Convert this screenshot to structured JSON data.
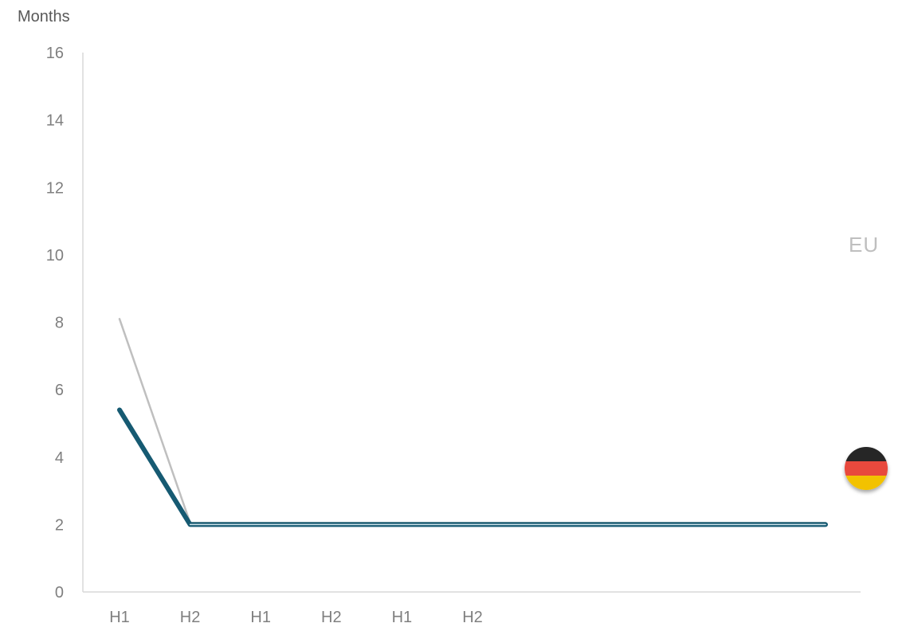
{
  "chart_data": {
    "type": "line",
    "ylabel": "Months",
    "ylim": [
      0,
      16
    ],
    "yticks": [
      0,
      2,
      4,
      6,
      8,
      10,
      12,
      14,
      16
    ],
    "categories": [
      "H1",
      "H2",
      "H1",
      "H2",
      "H1",
      "H2",
      "",
      "",
      "",
      "",
      ""
    ],
    "series": [
      {
        "color": "#bfbfbf",
        "values": [
          8.1,
          2.05,
          2.05,
          2.05,
          2.05,
          2.05,
          2.05,
          2.05,
          2.05,
          2.05,
          2.05
        ]
      },
      {
        "color": "#165a72",
        "values": [
          5.4,
          2.0,
          2.0,
          2.0,
          2.0,
          2.0,
          2.0,
          2.0,
          2.0,
          2.0,
          2.0
        ]
      }
    ],
    "annotations": {
      "region_label": "EU",
      "flag_icon": "germany-flag-icon",
      "flag_colors": [
        "#262626",
        "#e8483c",
        "#f2c200"
      ]
    },
    "grid": false,
    "legend": "none"
  }
}
